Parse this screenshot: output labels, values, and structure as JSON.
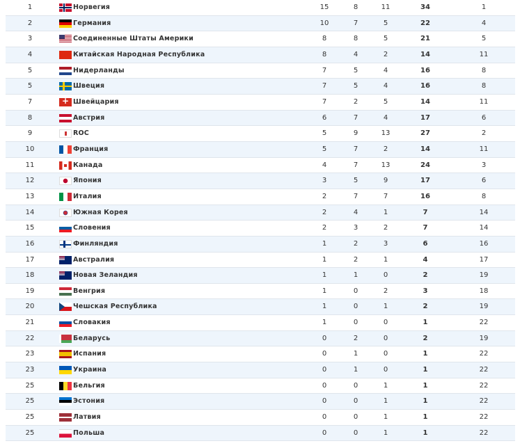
{
  "rows": [
    {
      "rank": "1",
      "flag": "no",
      "country": "Норвегия",
      "gold": "15",
      "silver": "8",
      "bronze": "11",
      "total": "34",
      "place": "1"
    },
    {
      "rank": "2",
      "flag": "de",
      "country": "Германия",
      "gold": "10",
      "silver": "7",
      "bronze": "5",
      "total": "22",
      "place": "4"
    },
    {
      "rank": "3",
      "flag": "us",
      "country": "Соединенные Штаты Америки",
      "gold": "8",
      "silver": "8",
      "bronze": "5",
      "total": "21",
      "place": "5"
    },
    {
      "rank": "4",
      "flag": "cn",
      "country": "Китайская Народная Республика",
      "gold": "8",
      "silver": "4",
      "bronze": "2",
      "total": "14",
      "place": "11"
    },
    {
      "rank": "5",
      "flag": "nl",
      "country": "Нидерланды",
      "gold": "7",
      "silver": "5",
      "bronze": "4",
      "total": "16",
      "place": "8"
    },
    {
      "rank": "5",
      "flag": "se",
      "country": "Швеция",
      "gold": "7",
      "silver": "5",
      "bronze": "4",
      "total": "16",
      "place": "8"
    },
    {
      "rank": "7",
      "flag": "ch",
      "country": "Швейцария",
      "gold": "7",
      "silver": "2",
      "bronze": "5",
      "total": "14",
      "place": "11"
    },
    {
      "rank": "8",
      "flag": "at",
      "country": "Австрия",
      "gold": "6",
      "silver": "7",
      "bronze": "4",
      "total": "17",
      "place": "6"
    },
    {
      "rank": "9",
      "flag": "roc",
      "country": "ROC",
      "gold": "5",
      "silver": "9",
      "bronze": "13",
      "total": "27",
      "place": "2"
    },
    {
      "rank": "10",
      "flag": "fr",
      "country": "Франция",
      "gold": "5",
      "silver": "7",
      "bronze": "2",
      "total": "14",
      "place": "11"
    },
    {
      "rank": "11",
      "flag": "ca",
      "country": "Канада",
      "gold": "4",
      "silver": "7",
      "bronze": "13",
      "total": "24",
      "place": "3"
    },
    {
      "rank": "12",
      "flag": "jp",
      "country": "Япония",
      "gold": "3",
      "silver": "5",
      "bronze": "9",
      "total": "17",
      "place": "6"
    },
    {
      "rank": "13",
      "flag": "it",
      "country": "Италия",
      "gold": "2",
      "silver": "7",
      "bronze": "7",
      "total": "16",
      "place": "8"
    },
    {
      "rank": "14",
      "flag": "kr",
      "country": "Южная Корея",
      "gold": "2",
      "silver": "4",
      "bronze": "1",
      "total": "7",
      "place": "14"
    },
    {
      "rank": "15",
      "flag": "si",
      "country": "Словения",
      "gold": "2",
      "silver": "3",
      "bronze": "2",
      "total": "7",
      "place": "14"
    },
    {
      "rank": "16",
      "flag": "fi",
      "country": "Финляндия",
      "gold": "1",
      "silver": "2",
      "bronze": "3",
      "total": "6",
      "place": "16"
    },
    {
      "rank": "17",
      "flag": "au",
      "country": "Австралия",
      "gold": "1",
      "silver": "2",
      "bronze": "1",
      "total": "4",
      "place": "17"
    },
    {
      "rank": "18",
      "flag": "nz",
      "country": "Новая Зеландия",
      "gold": "1",
      "silver": "1",
      "bronze": "0",
      "total": "2",
      "place": "19"
    },
    {
      "rank": "19",
      "flag": "hu",
      "country": "Венгрия",
      "gold": "1",
      "silver": "0",
      "bronze": "2",
      "total": "3",
      "place": "18"
    },
    {
      "rank": "20",
      "flag": "cz",
      "country": "Чешская Республика",
      "gold": "1",
      "silver": "0",
      "bronze": "1",
      "total": "2",
      "place": "19"
    },
    {
      "rank": "21",
      "flag": "sk",
      "country": "Словакия",
      "gold": "1",
      "silver": "0",
      "bronze": "0",
      "total": "1",
      "place": "22"
    },
    {
      "rank": "22",
      "flag": "by",
      "country": "Беларусь",
      "gold": "0",
      "silver": "2",
      "bronze": "0",
      "total": "2",
      "place": "19"
    },
    {
      "rank": "23",
      "flag": "es",
      "country": "Испания",
      "gold": "0",
      "silver": "1",
      "bronze": "0",
      "total": "1",
      "place": "22"
    },
    {
      "rank": "23",
      "flag": "ua",
      "country": "Украина",
      "gold": "0",
      "silver": "1",
      "bronze": "0",
      "total": "1",
      "place": "22"
    },
    {
      "rank": "25",
      "flag": "be",
      "country": "Бельгия",
      "gold": "0",
      "silver": "0",
      "bronze": "1",
      "total": "1",
      "place": "22"
    },
    {
      "rank": "25",
      "flag": "ee",
      "country": "Эстония",
      "gold": "0",
      "silver": "0",
      "bronze": "1",
      "total": "1",
      "place": "22"
    },
    {
      "rank": "25",
      "flag": "lv",
      "country": "Латвия",
      "gold": "0",
      "silver": "0",
      "bronze": "1",
      "total": "1",
      "place": "22"
    },
    {
      "rank": "25",
      "flag": "pl",
      "country": "Польша",
      "gold": "0",
      "silver": "0",
      "bronze": "1",
      "total": "1",
      "place": "22"
    }
  ]
}
